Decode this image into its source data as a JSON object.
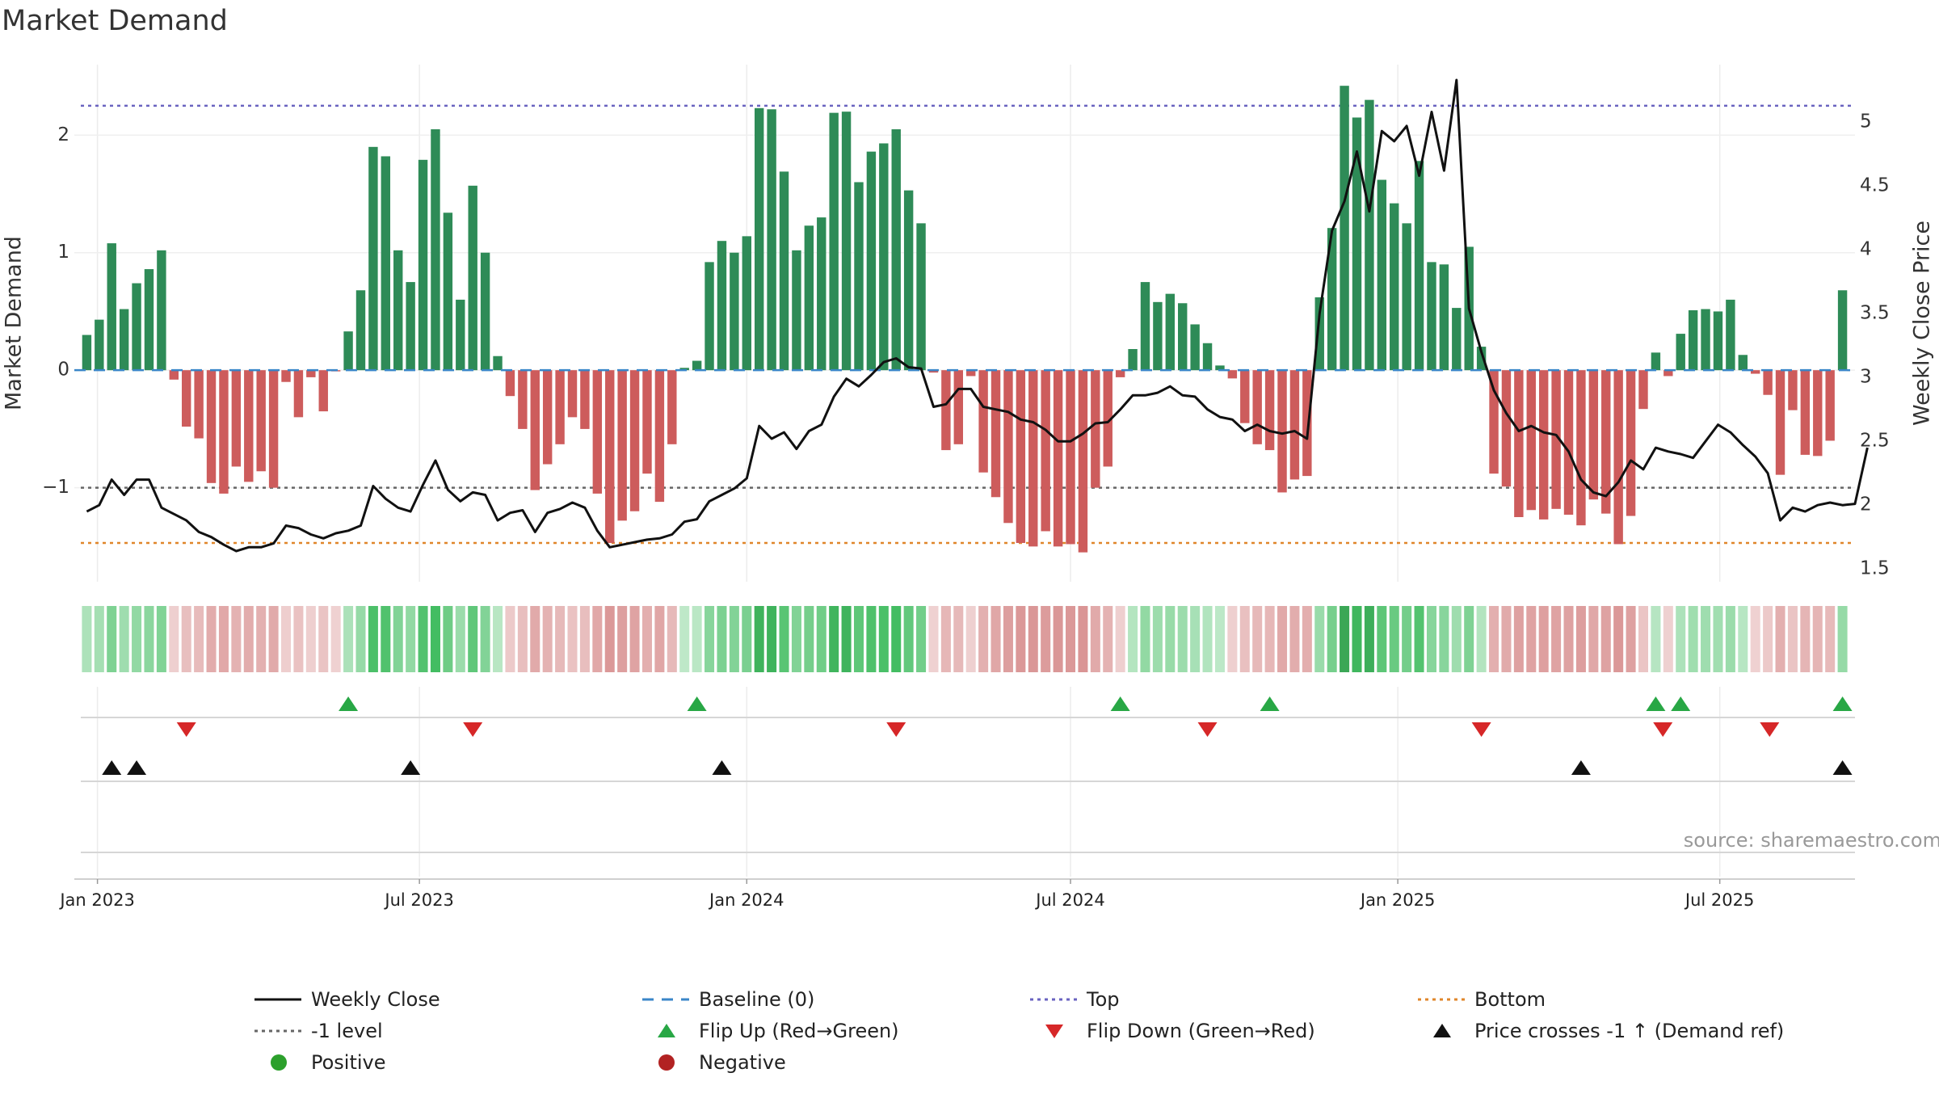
{
  "chart_data": {
    "type": "bar",
    "title": "Market Demand",
    "ylabel_left": "Market Demand",
    "ylabel_right": "Weekly Close Price",
    "source": "source: sharemaestro.com",
    "left_ylim": [
      -1.8,
      2.6
    ],
    "left_yticks": [
      -1,
      0,
      1,
      2
    ],
    "right_ylim": [
      1.4,
      5.45
    ],
    "right_yticks": [
      1.5,
      2,
      2.5,
      3,
      3.5,
      4,
      4.5,
      5
    ],
    "x_start": "2022-12-19",
    "x_end": "2025-09-15",
    "x_ticks": [
      {
        "label": "Jan 2023",
        "date": "2023-01-01"
      },
      {
        "label": "Jul 2023",
        "date": "2023-07-01"
      },
      {
        "label": "Jan 2024",
        "date": "2024-01-01"
      },
      {
        "label": "Jul 2024",
        "date": "2024-07-01"
      },
      {
        "label": "Jan 2025",
        "date": "2025-01-01"
      },
      {
        "label": "Jul 2025",
        "date": "2025-07-01"
      }
    ],
    "reference_lines": {
      "top": 2.25,
      "bottom": -1.47,
      "minus_one": -1,
      "baseline": 0
    },
    "first_week": "2022-12-26",
    "demand": [
      0.3,
      0.43,
      1.08,
      0.52,
      0.74,
      0.86,
      1.02,
      -0.08,
      -0.48,
      -0.58,
      -0.96,
      -1.05,
      -0.82,
      -0.95,
      -0.86,
      -1.0,
      -0.1,
      -0.4,
      -0.06,
      -0.35,
      -0.01,
      0.33,
      0.68,
      1.9,
      1.82,
      1.02,
      0.75,
      1.79,
      2.05,
      1.34,
      0.6,
      1.57,
      1.0,
      0.12,
      -0.22,
      -0.5,
      -1.02,
      -0.8,
      -0.63,
      -0.4,
      -0.5,
      -1.05,
      -1.47,
      -1.28,
      -1.2,
      -0.88,
      -1.12,
      -0.63,
      0.02,
      0.08,
      0.92,
      1.1,
      1.0,
      1.14,
      2.23,
      2.22,
      1.69,
      1.02,
      1.23,
      1.3,
      2.19,
      2.2,
      1.6,
      1.86,
      1.93,
      2.05,
      1.53,
      1.25,
      -0.02,
      -0.68,
      -0.63,
      -0.05,
      -0.87,
      -1.08,
      -1.3,
      -1.47,
      -1.5,
      -1.37,
      -1.5,
      -1.48,
      -1.55,
      -1.0,
      -0.82,
      -0.06,
      0.18,
      0.75,
      0.58,
      0.65,
      0.57,
      0.39,
      0.23,
      0.04,
      -0.07,
      -0.45,
      -0.63,
      -0.68,
      -1.04,
      -0.93,
      -0.9,
      0.62,
      1.21,
      2.42,
      2.15,
      2.3,
      1.62,
      1.42,
      1.25,
      1.78,
      0.92,
      0.9,
      0.53,
      1.05,
      0.2,
      -0.88,
      -0.99,
      -1.25,
      -1.19,
      -1.27,
      -1.18,
      -1.23,
      -1.32,
      -1.1,
      -1.22,
      -1.48,
      -1.24,
      -0.33,
      0.15,
      -0.05,
      0.31,
      0.51,
      0.52,
      0.5,
      0.6,
      0.13,
      -0.03,
      -0.21,
      -0.89,
      -0.34,
      -0.72,
      -0.73,
      -0.6,
      0.68
    ],
    "price": [
      1.95,
      2.0,
      2.2,
      2.08,
      2.2,
      2.2,
      1.98,
      1.93,
      1.88,
      1.79,
      1.75,
      1.69,
      1.64,
      1.67,
      1.67,
      1.7,
      1.84,
      1.82,
      1.77,
      1.74,
      1.78,
      1.8,
      1.84,
      2.15,
      2.05,
      1.98,
      1.95,
      2.16,
      2.35,
      2.12,
      2.03,
      2.1,
      2.08,
      1.88,
      1.94,
      1.96,
      1.79,
      1.94,
      1.97,
      2.02,
      1.98,
      1.8,
      1.67,
      1.69,
      1.71,
      1.73,
      1.74,
      1.77,
      1.87,
      1.89,
      2.03,
      2.08,
      2.13,
      2.21,
      2.62,
      2.52,
      2.57,
      2.44,
      2.58,
      2.63,
      2.85,
      2.99,
      2.93,
      3.02,
      3.12,
      3.15,
      3.08,
      3.07,
      2.77,
      2.79,
      2.91,
      2.91,
      2.77,
      2.75,
      2.73,
      2.67,
      2.65,
      2.59,
      2.5,
      2.5,
      2.56,
      2.64,
      2.65,
      2.75,
      2.86,
      2.86,
      2.88,
      2.93,
      2.86,
      2.85,
      2.75,
      2.69,
      2.67,
      2.58,
      2.63,
      2.58,
      2.56,
      2.58,
      2.52,
      3.5,
      4.15,
      4.38,
      4.77,
      4.3,
      4.93,
      4.85,
      4.97,
      4.58,
      5.08,
      4.62,
      5.33,
      3.54,
      3.2,
      2.9,
      2.72,
      2.58,
      2.62,
      2.57,
      2.55,
      2.42,
      2.2,
      2.1,
      2.07,
      2.18,
      2.35,
      2.28,
      2.45,
      2.42,
      2.4,
      2.37,
      2.5,
      2.63,
      2.57,
      2.47,
      2.38,
      2.25,
      1.88,
      1.98,
      1.95,
      2.0,
      2.02,
      2.0,
      2.01,
      2.45
    ],
    "flip_up_dates": [
      "2023-05-22",
      "2023-12-04",
      "2024-07-29",
      "2024-10-21",
      "2025-05-26",
      "2025-06-09",
      "2025-09-08"
    ],
    "flip_down_dates": [
      "2023-02-20",
      "2023-07-31",
      "2024-03-25",
      "2024-09-16",
      "2025-02-17",
      "2025-05-30",
      "2025-07-29"
    ],
    "cross_dates": [
      "2023-01-09",
      "2023-01-23",
      "2023-06-26",
      "2023-12-18",
      "2025-04-14",
      "2025-09-08"
    ],
    "legend": [
      {
        "label": "Weekly Close",
        "kind": "line",
        "color": "#111111"
      },
      {
        "label": "Baseline (0)",
        "kind": "dash",
        "color": "#3a86c8"
      },
      {
        "label": "Top",
        "kind": "dot",
        "color": "#6a63c0"
      },
      {
        "label": "Bottom",
        "kind": "dot",
        "color": "#e0862a"
      },
      {
        "label": "-1 level",
        "kind": "dot",
        "color": "#666666"
      },
      {
        "label": "Flip Up (Red→Green)",
        "kind": "tri-up",
        "color": "#28a745"
      },
      {
        "label": "Flip Down (Green→Red)",
        "kind": "tri-down",
        "color": "#d62728"
      },
      {
        "label": "Price crosses -1 ↑ (Demand ref)",
        "kind": "tri-up",
        "color": "#111111"
      },
      {
        "label": "Positive",
        "kind": "circle",
        "color": "#2ca02c"
      },
      {
        "label": "Negative",
        "kind": "circle",
        "color": "#b22222"
      }
    ],
    "colors": {
      "positive": "#2e8b57",
      "negative": "#cd5c5c",
      "price": "#111111"
    }
  }
}
